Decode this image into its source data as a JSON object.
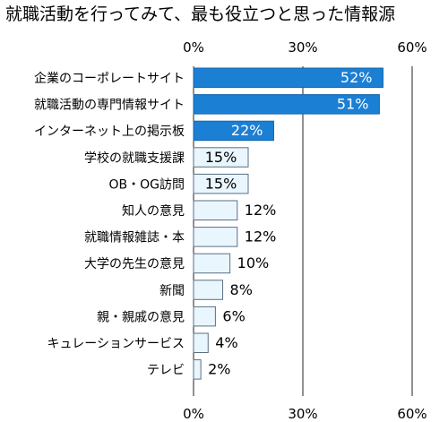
{
  "chart_data": {
    "type": "bar",
    "orientation": "horizontal",
    "title": "就職活動を行ってみて、最も役立つと思った情報源",
    "categories": [
      "企業のコーポレートサイト",
      "就職活動の専門情報サイト",
      "インターネット上の掲示板",
      "学校の就職支援課",
      "OB・OG訪問",
      "知人の意見",
      "就職情報雑誌・本",
      "大学の先生の意見",
      "新聞",
      "親・親戚の意見",
      "キュレーションサービス",
      "テレビ"
    ],
    "values": [
      52,
      51,
      22,
      15,
      15,
      12,
      12,
      10,
      8,
      6,
      4,
      2
    ],
    "value_labels": [
      "52%",
      "51%",
      "22%",
      "15%",
      "15%",
      "12%",
      "12%",
      "10%",
      "8%",
      "6%",
      "4%",
      "2%"
    ],
    "highlighted_top": 3,
    "xlim": [
      0,
      60
    ],
    "x_ticks": [
      0,
      30,
      60
    ],
    "x_tick_labels": [
      "0%",
      "30%",
      "60%"
    ],
    "grid": true,
    "legend": "none",
    "colors": {
      "highlight_fill": "#1b7fd4",
      "highlight_stroke": "#1566a9",
      "light_fill": "#eaf6fd",
      "light_stroke": "#5b6f83",
      "grid": "#222222",
      "label_inside": "#ffffff",
      "label_outside": "#000000"
    }
  }
}
